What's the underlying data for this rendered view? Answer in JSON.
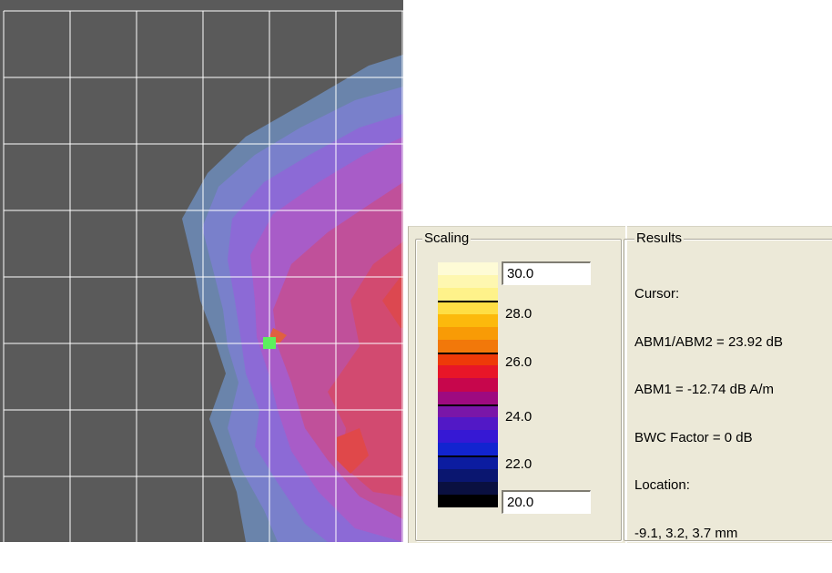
{
  "scaling": {
    "title": "Scaling",
    "max_value": "30.0",
    "min_value": "20.0",
    "tick_labels": [
      "28.0",
      "26.0",
      "24.0",
      "22.0"
    ],
    "colors": [
      "#fefbd6",
      "#fef7b0",
      "#fef28a",
      "#fede44",
      "#fcb90c",
      "#f89b06",
      "#f2780a",
      "#ee3a08",
      "#e81628",
      "#c7064c",
      "#9e0a80",
      "#7a16a8",
      "#5218c6",
      "#3618d4",
      "#1224d0",
      "#0c1ca0",
      "#0a1670",
      "#0a1040",
      "#000000"
    ]
  },
  "results": {
    "title": "Results",
    "lines": [
      "Cursor:",
      "ABM1/ABM2 = 23.92 dB",
      "ABM1 = -12.74 dB A/m",
      "BWC Factor = 0 dB",
      "Location:",
      "-9.1, 3.2, 3.7 mm"
    ]
  },
  "plot": {
    "background_color": "#5a5a5a",
    "grid_color": "#ffffff",
    "cursor_color": "#5cf05c"
  }
}
